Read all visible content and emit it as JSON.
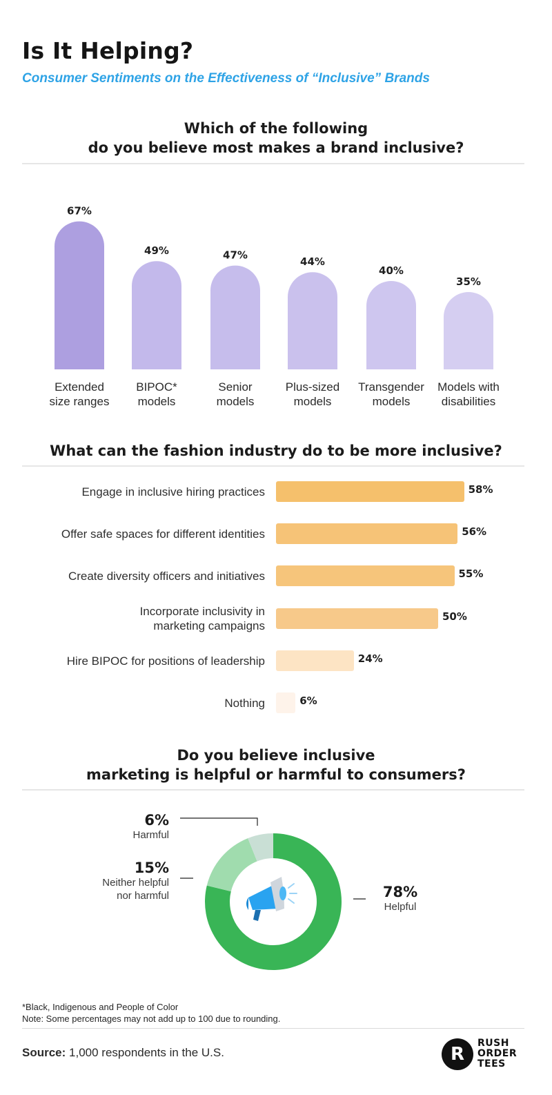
{
  "header": {
    "title": "Is It Helping?",
    "subtitle": "Consumer Sentiments on the Effectiveness of “Inclusive” Brands"
  },
  "sections": {
    "q1_line1": "Which of the following",
    "q1_line2": "do you believe most makes a brand inclusive?",
    "q2": "What can the fashion industry do to be more inclusive?",
    "q3_line1": "Do you believe inclusive",
    "q3_line2": "marketing is helpful or harmful to consumers?"
  },
  "colors": {
    "subtitle": "#2ea3e6",
    "col_bars": [
      "#ad9fe0",
      "#c3b9eb",
      "#c6bdec",
      "#cac1ed",
      "#cec6ef",
      "#d5cef1"
    ],
    "hbars": [
      "#f5c06c",
      "#f6c377",
      "#f6c57b",
      "#f7c98a",
      "#fde4c4",
      "#fef3ea"
    ],
    "donut": {
      "helpful": "#39b556",
      "neither": "#a0dcae",
      "harmful": "#c9dfd5"
    },
    "megaphone": "#29a3f0"
  },
  "chart_data": [
    {
      "type": "bar",
      "orientation": "vertical",
      "title": "Which of the following do you believe most makes a brand inclusive?",
      "categories": [
        "Extended size ranges",
        "BIPOC* models",
        "Senior models",
        "Plus-sized models",
        "Transgender models",
        "Models with disabilities"
      ],
      "category_lines": [
        [
          "Extended",
          "size ranges"
        ],
        [
          "BIPOC*",
          "models"
        ],
        [
          "Senior",
          "models"
        ],
        [
          "Plus-sized",
          "models"
        ],
        [
          "Transgender",
          "models"
        ],
        [
          "Models with",
          "disabilities"
        ]
      ],
      "values": [
        67,
        49,
        47,
        44,
        40,
        35
      ],
      "labels": [
        "67%",
        "49%",
        "47%",
        "44%",
        "40%",
        "35%"
      ],
      "unit": "%"
    },
    {
      "type": "bar",
      "orientation": "horizontal",
      "title": "What can the fashion industry do to be more inclusive?",
      "categories": [
        "Engage in inclusive hiring practices",
        "Offer safe spaces for different identities",
        "Create diversity officers and initiatives",
        "Incorporate inclusivity in marketing campaigns",
        "Hire BIPOC for positions of leadership",
        "Nothing"
      ],
      "category_lines": [
        [
          "Engage in inclusive hiring practices"
        ],
        [
          "Offer safe spaces for different identities"
        ],
        [
          "Create diversity officers and initiatives"
        ],
        [
          "Incorporate inclusivity in",
          "marketing campaigns"
        ],
        [
          "Hire BIPOC for positions of leadership"
        ],
        [
          "Nothing"
        ]
      ],
      "values": [
        58,
        56,
        55,
        50,
        24,
        6
      ],
      "labels": [
        "58%",
        "56%",
        "55%",
        "50%",
        "24%",
        "6%"
      ],
      "unit": "%"
    },
    {
      "type": "pie",
      "variant": "donut",
      "title": "Do you believe inclusive marketing is helpful or harmful to consumers?",
      "slices": [
        {
          "label": "Helpful",
          "value": 78,
          "text": "78%"
        },
        {
          "label": "Neither helpful nor harmful",
          "value": 15,
          "text": "15%"
        },
        {
          "label": "Harmful",
          "value": 6,
          "text": "6%"
        }
      ]
    }
  ],
  "donut_labels": {
    "harmful_pct": "6%",
    "harmful": "Harmful",
    "neither_pct": "15%",
    "neither_line1": "Neither helpful",
    "neither_line2": "nor harmful",
    "helpful_pct": "78%",
    "helpful": "Helpful"
  },
  "notes": {
    "line1": "*Black, Indigenous and People of Color",
    "line2": "Note: Some percentages may not add up to 100 due to rounding."
  },
  "source": {
    "label": "Source:",
    "text": "1,000 respondents in the U.S."
  },
  "logo": {
    "lines": [
      "RUSH",
      "ORDER",
      "TEES"
    ],
    "mark": "R",
    "icon": "rush-order-tees-logo"
  }
}
